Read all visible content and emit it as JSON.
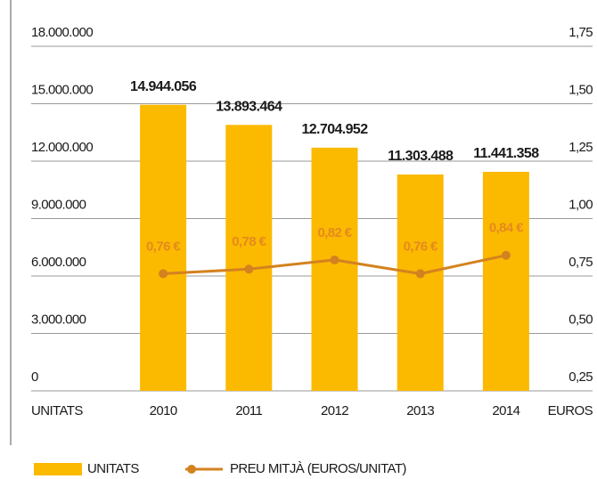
{
  "chart_data": {
    "type": "bar_line",
    "categories": [
      "2010",
      "2011",
      "2012",
      "2013",
      "2014"
    ],
    "y_label": "UNITATS",
    "y2_label": "EUROS",
    "ylim": [
      0,
      18000000
    ],
    "yticks": [
      0,
      {
        "value": 3000000,
        "label": "3.000.000"
      },
      {
        "value": 6000000,
        "label": "6.000.000"
      },
      {
        "value": 9000000,
        "label": "9.000.000"
      },
      {
        "value": 12000000,
        "label": "12.000.000"
      },
      {
        "value": 15000000,
        "label": "15.000.000"
      },
      {
        "value": 18000000,
        "label": "18.000.000"
      }
    ],
    "y2lim": [
      0.25,
      1.75
    ],
    "y2ticks": [
      {
        "value": 0.25,
        "label": "0,25"
      },
      {
        "value": 0.5,
        "label": "0,50"
      },
      {
        "value": 0.75,
        "label": "0,75"
      },
      {
        "value": 1.0,
        "label": "1,00"
      },
      {
        "value": 1.25,
        "label": "1,25"
      },
      {
        "value": 1.5,
        "label": "1,50"
      },
      {
        "value": 1.75,
        "label": "1,75"
      }
    ],
    "grid": true,
    "series": [
      {
        "name": "UNITATS",
        "color": "#fbb900",
        "values": [
          14944056,
          13893464,
          12704952,
          11303488,
          11441358
        ],
        "value_labels": [
          "14.944.056",
          "13.893.464",
          "12.704.952",
          "11.303.488",
          "11.441.358"
        ]
      },
      {
        "name": "PREU MITJÀ (EUROS/UNITAT)",
        "color": "#d4821f",
        "axis": "y2",
        "values": [
          0.76,
          0.78,
          0.82,
          0.76,
          0.84
        ],
        "value_labels": [
          "0,76 €",
          "0,78 €",
          "0,82 €",
          "0,76 €",
          "0,84 €"
        ]
      }
    ]
  }
}
